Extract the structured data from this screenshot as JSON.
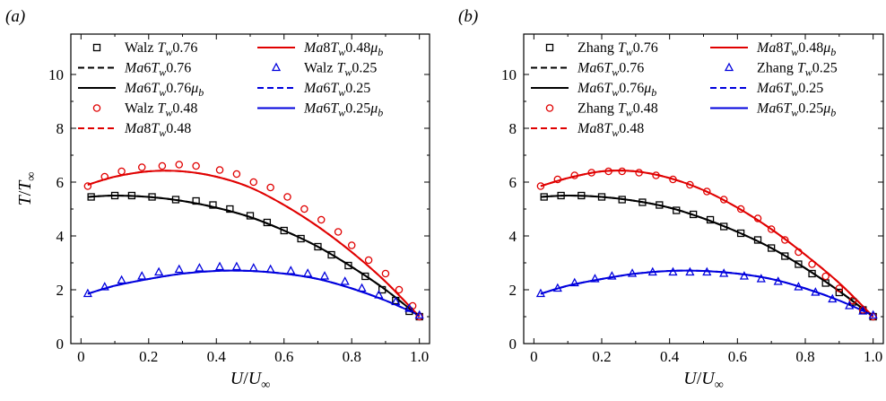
{
  "axes": {
    "xlabel": "U/U∞",
    "ylabel": "T/T∞",
    "xticks": [
      "0",
      "0.2",
      "0.4",
      "0.6",
      "0.8",
      "1.0"
    ],
    "yticks": [
      "0",
      "2",
      "4",
      "6",
      "8",
      "10"
    ]
  },
  "chart_data": [
    {
      "type": "scatter",
      "panel_label": "(a)",
      "xlabel": "U/U∞",
      "ylabel": "T/T∞",
      "xlim": [
        -0.03,
        1.03
      ],
      "ylim": [
        0,
        11.5
      ],
      "grid": false,
      "legend_position": "top",
      "legend": [
        {
          "key": "sq",
          "text": "Walz T_w0.76"
        },
        {
          "key": "dash_black",
          "text": "Ma6T_w0.76"
        },
        {
          "key": "solid_black",
          "text": "Ma6T_w0.76μ_b"
        },
        {
          "key": "circ",
          "text": "Walz T_w0.48"
        },
        {
          "key": "dash_red",
          "text": "Ma8T_w0.48"
        },
        {
          "key": "solid_red",
          "text": "Ma8T_w0.48μ_b"
        },
        {
          "key": "tri",
          "text": "Walz T_w0.25"
        },
        {
          "key": "dash_blue",
          "text": "Ma6T_w0.25"
        },
        {
          "key": "solid_blue",
          "text": "Ma6T_w0.25μ_b"
        }
      ],
      "series": [
        {
          "key": "sq",
          "style": "marker-square",
          "color": "#000000",
          "x": [
            0.03,
            0.1,
            0.15,
            0.21,
            0.28,
            0.34,
            0.39,
            0.44,
            0.5,
            0.55,
            0.6,
            0.65,
            0.7,
            0.74,
            0.79,
            0.84,
            0.89,
            0.93,
            0.97,
            1.0
          ],
          "y": [
            5.45,
            5.5,
            5.5,
            5.45,
            5.35,
            5.3,
            5.15,
            5.0,
            4.75,
            4.5,
            4.2,
            3.9,
            3.6,
            3.3,
            2.9,
            2.5,
            2.0,
            1.6,
            1.2,
            1.0
          ]
        },
        {
          "key": "dash_black",
          "style": "dashed",
          "color": "#000000",
          "x": [
            0.02,
            0.1,
            0.2,
            0.3,
            0.4,
            0.5,
            0.6,
            0.7,
            0.8,
            0.9,
            1.0
          ],
          "y": [
            5.45,
            5.5,
            5.45,
            5.3,
            5.05,
            4.7,
            4.2,
            3.6,
            2.85,
            2.0,
            1.0
          ]
        },
        {
          "key": "solid_black",
          "style": "solid",
          "color": "#000000",
          "x": [
            0.02,
            0.1,
            0.2,
            0.3,
            0.4,
            0.5,
            0.6,
            0.7,
            0.8,
            0.9,
            1.0
          ],
          "y": [
            5.45,
            5.5,
            5.45,
            5.3,
            5.05,
            4.7,
            4.2,
            3.6,
            2.85,
            2.0,
            1.0
          ]
        },
        {
          "key": "circ",
          "style": "marker-circle",
          "color": "#e00000",
          "x": [
            0.02,
            0.07,
            0.12,
            0.18,
            0.24,
            0.29,
            0.34,
            0.41,
            0.46,
            0.51,
            0.56,
            0.61,
            0.66,
            0.71,
            0.76,
            0.8,
            0.85,
            0.9,
            0.94,
            0.98,
            1.0
          ],
          "y": [
            5.85,
            6.2,
            6.4,
            6.55,
            6.6,
            6.65,
            6.6,
            6.45,
            6.3,
            6.0,
            5.8,
            5.45,
            5.0,
            4.6,
            4.15,
            3.65,
            3.1,
            2.6,
            2.0,
            1.4,
            1.0
          ]
        },
        {
          "key": "dash_red",
          "style": "dashed",
          "color": "#e00000",
          "x": [
            0.02,
            0.1,
            0.2,
            0.3,
            0.4,
            0.5,
            0.6,
            0.7,
            0.8,
            0.9,
            1.0
          ],
          "y": [
            5.9,
            6.2,
            6.4,
            6.4,
            6.2,
            5.8,
            5.15,
            4.35,
            3.4,
            2.3,
            1.0
          ]
        },
        {
          "key": "solid_red",
          "style": "solid",
          "color": "#e00000",
          "x": [
            0.02,
            0.1,
            0.2,
            0.3,
            0.4,
            0.5,
            0.6,
            0.7,
            0.8,
            0.9,
            1.0
          ],
          "y": [
            5.9,
            6.2,
            6.4,
            6.4,
            6.2,
            5.8,
            5.15,
            4.35,
            3.4,
            2.3,
            1.0
          ]
        },
        {
          "key": "tri",
          "style": "marker-triangle",
          "color": "#0000dd",
          "x": [
            0.02,
            0.07,
            0.12,
            0.18,
            0.23,
            0.29,
            0.35,
            0.41,
            0.46,
            0.51,
            0.56,
            0.62,
            0.67,
            0.72,
            0.78,
            0.83,
            0.88,
            0.93,
            0.97,
            1.0
          ],
          "y": [
            1.85,
            2.1,
            2.35,
            2.5,
            2.65,
            2.75,
            2.8,
            2.85,
            2.85,
            2.8,
            2.75,
            2.7,
            2.6,
            2.5,
            2.3,
            2.05,
            1.8,
            1.55,
            1.3,
            1.05
          ]
        },
        {
          "key": "dash_blue",
          "style": "dashed",
          "color": "#0000dd",
          "x": [
            0.02,
            0.1,
            0.2,
            0.3,
            0.4,
            0.5,
            0.6,
            0.7,
            0.8,
            0.9,
            1.0
          ],
          "y": [
            1.85,
            2.15,
            2.4,
            2.6,
            2.7,
            2.7,
            2.6,
            2.4,
            2.05,
            1.6,
            1.05
          ]
        },
        {
          "key": "solid_blue",
          "style": "solid",
          "color": "#0000dd",
          "x": [
            0.02,
            0.1,
            0.2,
            0.3,
            0.4,
            0.5,
            0.6,
            0.7,
            0.8,
            0.9,
            1.0
          ],
          "y": [
            1.85,
            2.15,
            2.4,
            2.6,
            2.7,
            2.7,
            2.6,
            2.4,
            2.05,
            1.6,
            1.05
          ]
        }
      ]
    },
    {
      "type": "scatter",
      "panel_label": "(b)",
      "xlabel": "U/U∞",
      "ylabel": "",
      "xlim": [
        -0.03,
        1.03
      ],
      "ylim": [
        0,
        11.5
      ],
      "grid": false,
      "legend_position": "top",
      "legend": [
        {
          "key": "sq",
          "text": "Zhang T_w0.76"
        },
        {
          "key": "dash_black",
          "text": "Ma6T_w0.76"
        },
        {
          "key": "solid_black",
          "text": "Ma6T_w0.76μ_b"
        },
        {
          "key": "circ",
          "text": "Zhang T_w0.48"
        },
        {
          "key": "dash_red",
          "text": "Ma8T_w0.48"
        },
        {
          "key": "solid_red",
          "text": "Ma8T_w0.48μ_b"
        },
        {
          "key": "tri",
          "text": "Zhang T_w0.25"
        },
        {
          "key": "dash_blue",
          "text": "Ma6T_w0.25"
        },
        {
          "key": "solid_blue",
          "text": "Ma6T_w0.25μ_b"
        }
      ],
      "series": [
        {
          "key": "sq",
          "style": "marker-square",
          "color": "#000000",
          "x": [
            0.03,
            0.08,
            0.14,
            0.2,
            0.26,
            0.32,
            0.37,
            0.42,
            0.47,
            0.52,
            0.56,
            0.61,
            0.66,
            0.7,
            0.74,
            0.78,
            0.82,
            0.86,
            0.9,
            0.94,
            0.97,
            1.0
          ],
          "y": [
            5.45,
            5.5,
            5.5,
            5.45,
            5.35,
            5.25,
            5.15,
            4.95,
            4.8,
            4.6,
            4.35,
            4.1,
            3.85,
            3.55,
            3.25,
            2.95,
            2.6,
            2.25,
            1.9,
            1.55,
            1.25,
            1.0
          ]
        },
        {
          "key": "dash_black",
          "style": "dashed",
          "color": "#000000",
          "x": [
            0.02,
            0.1,
            0.2,
            0.3,
            0.4,
            0.5,
            0.6,
            0.7,
            0.8,
            0.9,
            1.0
          ],
          "y": [
            5.45,
            5.5,
            5.45,
            5.3,
            5.05,
            4.65,
            4.15,
            3.55,
            2.8,
            1.95,
            1.0
          ]
        },
        {
          "key": "solid_black",
          "style": "solid",
          "color": "#000000",
          "x": [
            0.02,
            0.1,
            0.2,
            0.3,
            0.4,
            0.5,
            0.6,
            0.7,
            0.8,
            0.9,
            1.0
          ],
          "y": [
            5.45,
            5.5,
            5.45,
            5.3,
            5.05,
            4.65,
            4.15,
            3.55,
            2.8,
            1.95,
            1.0
          ]
        },
        {
          "key": "circ",
          "style": "marker-circle",
          "color": "#e00000",
          "x": [
            0.02,
            0.07,
            0.12,
            0.17,
            0.22,
            0.26,
            0.31,
            0.36,
            0.41,
            0.46,
            0.51,
            0.56,
            0.61,
            0.66,
            0.7,
            0.74,
            0.78,
            0.82,
            0.86,
            0.9,
            0.94,
            0.97,
            1.0
          ],
          "y": [
            5.85,
            6.1,
            6.25,
            6.35,
            6.4,
            6.4,
            6.35,
            6.25,
            6.1,
            5.9,
            5.65,
            5.35,
            5.0,
            4.65,
            4.25,
            3.85,
            3.4,
            2.95,
            2.5,
            2.05,
            1.6,
            1.25,
            1.0
          ]
        },
        {
          "key": "dash_red",
          "style": "dashed",
          "color": "#e00000",
          "x": [
            0.02,
            0.1,
            0.2,
            0.3,
            0.4,
            0.5,
            0.6,
            0.7,
            0.8,
            0.9,
            1.0
          ],
          "y": [
            5.85,
            6.15,
            6.4,
            6.4,
            6.15,
            5.7,
            5.05,
            4.25,
            3.3,
            2.25,
            1.0
          ]
        },
        {
          "key": "solid_red",
          "style": "solid",
          "color": "#e00000",
          "x": [
            0.02,
            0.1,
            0.2,
            0.3,
            0.4,
            0.5,
            0.6,
            0.7,
            0.8,
            0.9,
            1.0
          ],
          "y": [
            5.85,
            6.15,
            6.4,
            6.4,
            6.15,
            5.7,
            5.05,
            4.25,
            3.3,
            2.25,
            1.0
          ]
        },
        {
          "key": "tri",
          "style": "marker-triangle",
          "color": "#0000dd",
          "x": [
            0.02,
            0.07,
            0.12,
            0.18,
            0.23,
            0.29,
            0.35,
            0.41,
            0.46,
            0.51,
            0.56,
            0.62,
            0.67,
            0.72,
            0.78,
            0.83,
            0.88,
            0.93,
            0.97,
            1.0
          ],
          "y": [
            1.85,
            2.05,
            2.25,
            2.4,
            2.5,
            2.6,
            2.65,
            2.65,
            2.65,
            2.65,
            2.6,
            2.5,
            2.4,
            2.3,
            2.1,
            1.9,
            1.65,
            1.4,
            1.2,
            1.05
          ]
        },
        {
          "key": "dash_blue",
          "style": "dashed",
          "color": "#0000dd",
          "x": [
            0.02,
            0.1,
            0.2,
            0.3,
            0.4,
            0.5,
            0.6,
            0.7,
            0.8,
            0.9,
            1.0
          ],
          "y": [
            1.85,
            2.15,
            2.4,
            2.6,
            2.7,
            2.7,
            2.6,
            2.4,
            2.05,
            1.6,
            1.05
          ]
        },
        {
          "key": "solid_blue",
          "style": "solid",
          "color": "#0000dd",
          "x": [
            0.02,
            0.1,
            0.2,
            0.3,
            0.4,
            0.5,
            0.6,
            0.7,
            0.8,
            0.9,
            1.0
          ],
          "y": [
            1.85,
            2.15,
            2.4,
            2.6,
            2.7,
            2.7,
            2.6,
            2.4,
            2.05,
            1.6,
            1.05
          ]
        }
      ]
    }
  ]
}
